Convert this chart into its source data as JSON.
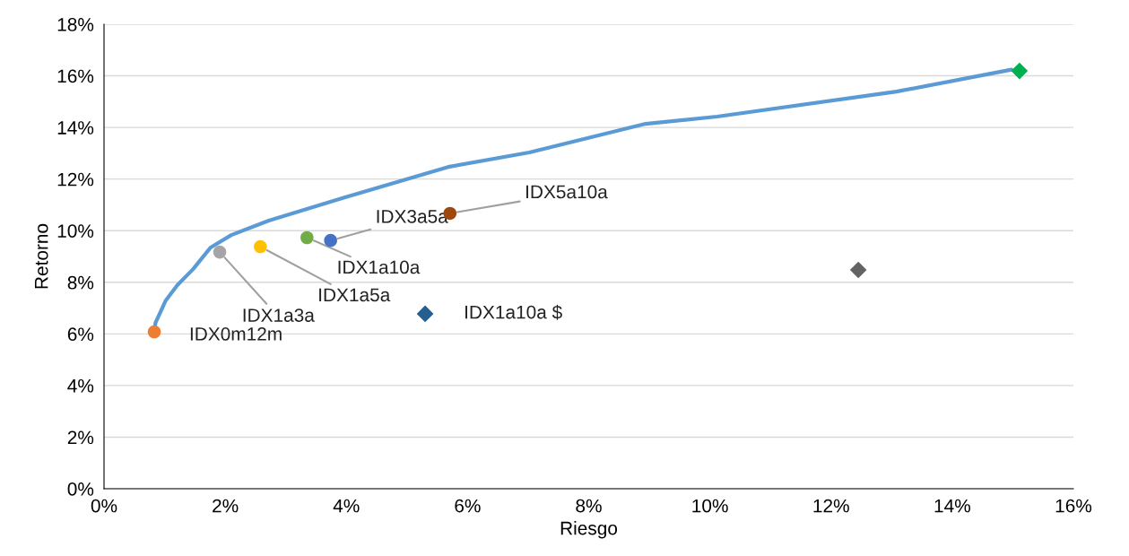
{
  "chart_data": {
    "type": "scatter",
    "xlabel": "Riesgo",
    "ylabel": "Retorno",
    "xlim": [
      0,
      16
    ],
    "ylim": [
      0,
      18
    ],
    "xticks": [
      {
        "value": 0,
        "label": "0%"
      },
      {
        "value": 2,
        "label": "2%"
      },
      {
        "value": 4,
        "label": "4%"
      },
      {
        "value": 6,
        "label": "6%"
      },
      {
        "value": 8,
        "label": "8%"
      },
      {
        "value": 10,
        "label": "10%"
      },
      {
        "value": 12,
        "label": "12%"
      },
      {
        "value": 14,
        "label": "14%"
      },
      {
        "value": 16,
        "label": "16%"
      }
    ],
    "yticks": [
      {
        "value": 0,
        "label": "0%"
      },
      {
        "value": 2,
        "label": "2%"
      },
      {
        "value": 4,
        "label": "4%"
      },
      {
        "value": 6,
        "label": "6%"
      },
      {
        "value": 8,
        "label": "8%"
      },
      {
        "value": 10,
        "label": "10%"
      },
      {
        "value": 12,
        "label": "12%"
      },
      {
        "value": 14,
        "label": "14%"
      },
      {
        "value": 16,
        "label": "16%"
      },
      {
        "value": 18,
        "label": "18%"
      }
    ],
    "grid": "y",
    "series": [
      {
        "type": "line",
        "color": "#5b9bd5",
        "x": [
          0.83,
          0.85,
          1.02,
          1.21,
          1.47,
          1.76,
          2.1,
          2.72,
          3.98,
          5.68,
          7.02,
          8.94,
          10.12,
          13.08,
          14.98
        ],
        "values": [
          6.15,
          6.43,
          7.3,
          7.89,
          8.51,
          9.35,
          9.83,
          10.39,
          11.29,
          12.47,
          13.03,
          14.14,
          14.42,
          15.39,
          16.24
        ],
        "marker": "none"
      },
      {
        "name": "IDX0m12m",
        "color": "#ed7d31",
        "x": [
          0.83
        ],
        "values": [
          6.08
        ],
        "marker": "circle"
      },
      {
        "name": "IDX1a3a",
        "color": "#a5a5a5",
        "x": [
          1.91
        ],
        "values": [
          9.17
        ],
        "marker": "circle"
      },
      {
        "name": "IDX1a5a",
        "color": "#ffc000",
        "x": [
          2.58
        ],
        "values": [
          9.38
        ],
        "marker": "circle"
      },
      {
        "name": "IDX1a10a",
        "color": "#70ad47",
        "x": [
          3.35
        ],
        "values": [
          9.73
        ],
        "marker": "circle"
      },
      {
        "name": "IDX3a5a",
        "color": "#4472c4",
        "x": [
          3.74
        ],
        "values": [
          9.62
        ],
        "marker": "circle"
      },
      {
        "name": "IDX5a10a",
        "color": "#9e480e",
        "x": [
          5.71
        ],
        "values": [
          10.67
        ],
        "marker": "circle"
      },
      {
        "name": "IDX1a10a $",
        "color": "#255e91",
        "x": [
          5.3
        ],
        "values": [
          6.78
        ],
        "marker": "diamond"
      },
      {
        "color": "#636363",
        "x": [
          12.45
        ],
        "values": [
          8.48
        ],
        "marker": "diamond"
      },
      {
        "color": "#00b050",
        "x": [
          15.11
        ],
        "values": [
          16.19
        ],
        "marker": "diamond"
      }
    ]
  }
}
